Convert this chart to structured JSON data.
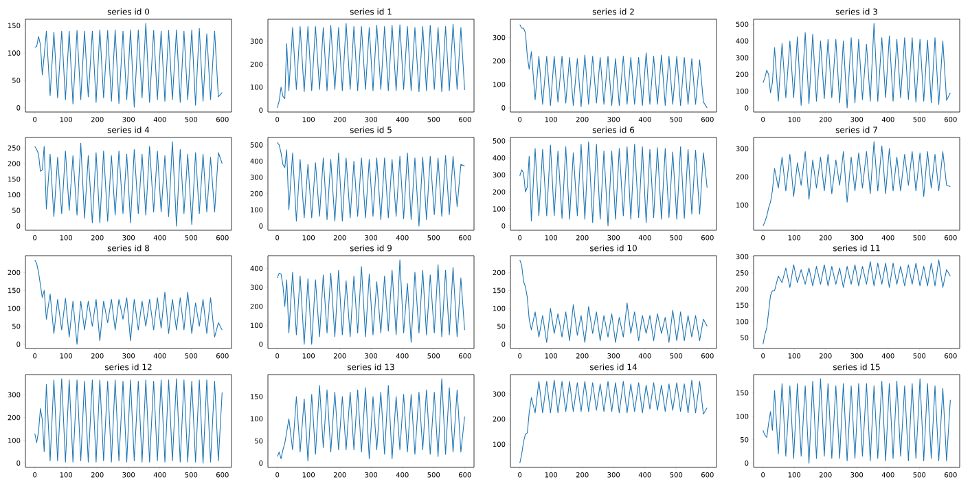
{
  "chart_data": [
    {
      "type": "line",
      "title": "series id 0",
      "color": "#1f77b4",
      "xlim": [
        -30,
        629
      ],
      "xticks": [
        0,
        100,
        200,
        300,
        400,
        500,
        600
      ],
      "ylim": [
        -7.7,
        161.6
      ],
      "yticks": [
        0,
        50,
        100,
        150
      ],
      "x": [
        0,
        6,
        12,
        18,
        24,
        30,
        37,
        49,
        61,
        73,
        86,
        98,
        110,
        122,
        135,
        147,
        159,
        171,
        184,
        196,
        208,
        220,
        233,
        245,
        257,
        269,
        282,
        294,
        306,
        318,
        331,
        343,
        355,
        367,
        380,
        392,
        404,
        416,
        428,
        440,
        453,
        465,
        477,
        489,
        502,
        514,
        526,
        538,
        550,
        562,
        575,
        587,
        599
      ],
      "values": [
        110,
        112,
        130,
        115,
        60,
        95,
        140,
        22,
        138,
        18,
        140,
        15,
        140,
        7,
        141,
        15,
        140,
        20,
        140,
        10,
        142,
        18,
        141,
        12,
        142,
        8,
        140,
        15,
        142,
        1,
        142,
        18,
        154,
        10,
        141,
        15,
        140,
        12,
        141,
        15,
        142,
        10,
        140,
        15,
        142,
        5,
        145,
        12,
        135,
        15,
        140,
        20,
        28
      ]
    },
    {
      "type": "line",
      "title": "series id 1",
      "color": "#1f77b4",
      "xlim": [
        -30,
        629
      ],
      "xticks": [
        0,
        100,
        200,
        300,
        400,
        500,
        600
      ],
      "ylim": [
        -8.4,
        396.4
      ],
      "yticks": [
        0,
        100,
        200,
        300
      ],
      "x": [
        0,
        6,
        12,
        18,
        24,
        30,
        37,
        49,
        61,
        73,
        86,
        98,
        110,
        122,
        135,
        147,
        159,
        171,
        184,
        196,
        208,
        220,
        233,
        245,
        257,
        269,
        282,
        294,
        306,
        318,
        331,
        343,
        355,
        367,
        380,
        392,
        404,
        416,
        428,
        440,
        453,
        465,
        477,
        489,
        502,
        514,
        526,
        538,
        550,
        562,
        575,
        587,
        599
      ],
      "values": [
        10,
        40,
        100,
        60,
        50,
        290,
        85,
        360,
        90,
        365,
        80,
        365,
        85,
        365,
        90,
        360,
        85,
        370,
        90,
        360,
        85,
        378,
        90,
        365,
        85,
        365,
        90,
        360,
        85,
        370,
        90,
        365,
        85,
        370,
        85,
        372,
        90,
        365,
        85,
        360,
        80,
        365,
        85,
        370,
        90,
        360,
        80,
        365,
        85,
        375,
        90,
        360,
        88
      ]
    },
    {
      "type": "line",
      "title": "series id 2",
      "color": "#1f77b4",
      "xlim": [
        -30,
        629
      ],
      "xticks": [
        0,
        100,
        200,
        300,
        400,
        500,
        600
      ],
      "ylim": [
        -18,
        378
      ],
      "yticks": [
        0,
        100,
        200,
        300
      ],
      "x": [
        0,
        6,
        12,
        18,
        24,
        30,
        37,
        49,
        61,
        73,
        86,
        98,
        110,
        122,
        135,
        147,
        159,
        171,
        184,
        196,
        208,
        220,
        233,
        245,
        257,
        269,
        282,
        294,
        306,
        318,
        331,
        343,
        355,
        367,
        380,
        392,
        404,
        416,
        428,
        440,
        453,
        465,
        477,
        489,
        502,
        514,
        526,
        538,
        550,
        562,
        575,
        587,
        599
      ],
      "values": [
        355,
        340,
        340,
        320,
        220,
        165,
        240,
        35,
        220,
        15,
        220,
        10,
        220,
        25,
        220,
        20,
        215,
        10,
        210,
        5,
        225,
        15,
        220,
        20,
        215,
        15,
        220,
        10,
        210,
        10,
        220,
        15,
        215,
        15,
        215,
        10,
        235,
        15,
        220,
        15,
        225,
        10,
        220,
        15,
        220,
        10,
        215,
        15,
        210,
        15,
        205,
        25,
        0
      ]
    },
    {
      "type": "line",
      "title": "series id 3",
      "color": "#1f77b4",
      "xlim": [
        -30,
        629
      ],
      "xticks": [
        0,
        100,
        200,
        300,
        400,
        500,
        600
      ],
      "ylim": [
        -25,
        530
      ],
      "yticks": [
        0,
        100,
        200,
        300,
        400,
        500
      ],
      "x": [
        0,
        6,
        12,
        18,
        24,
        30,
        37,
        49,
        61,
        73,
        86,
        98,
        110,
        122,
        135,
        147,
        159,
        171,
        184,
        196,
        208,
        220,
        233,
        245,
        257,
        269,
        282,
        294,
        306,
        318,
        331,
        343,
        355,
        367,
        380,
        392,
        404,
        416,
        428,
        440,
        453,
        465,
        477,
        489,
        502,
        514,
        526,
        538,
        550,
        562,
        575,
        587,
        599
      ],
      "values": [
        150,
        180,
        225,
        200,
        90,
        150,
        360,
        40,
        385,
        60,
        400,
        60,
        425,
        15,
        450,
        25,
        440,
        40,
        400,
        55,
        410,
        60,
        410,
        30,
        400,
        0,
        420,
        30,
        410,
        50,
        380,
        40,
        505,
        40,
        420,
        60,
        430,
        40,
        410,
        60,
        420,
        50,
        420,
        35,
        410,
        40,
        405,
        30,
        420,
        20,
        400,
        45,
        90
      ]
    },
    {
      "type": "line",
      "title": "series id 4",
      "color": "#1f77b4",
      "xlim": [
        -30,
        629
      ],
      "xticks": [
        0,
        100,
        200,
        300,
        400,
        500,
        600
      ],
      "ylim": [
        -13.5,
        283.5
      ],
      "yticks": [
        0,
        50,
        100,
        150,
        200,
        250
      ],
      "x": [
        0,
        6,
        12,
        18,
        24,
        30,
        37,
        49,
        61,
        73,
        86,
        98,
        110,
        122,
        135,
        147,
        159,
        171,
        184,
        196,
        208,
        220,
        233,
        245,
        257,
        269,
        282,
        294,
        306,
        318,
        331,
        343,
        355,
        367,
        380,
        392,
        404,
        416,
        428,
        440,
        453,
        465,
        477,
        489,
        502,
        514,
        526,
        538,
        550,
        562,
        575,
        587,
        599
      ],
      "values": [
        255,
        245,
        230,
        175,
        180,
        255,
        55,
        230,
        30,
        220,
        40,
        240,
        50,
        225,
        35,
        265,
        25,
        225,
        10,
        235,
        10,
        240,
        15,
        225,
        35,
        240,
        40,
        230,
        10,
        245,
        40,
        230,
        35,
        255,
        45,
        240,
        45,
        225,
        30,
        270,
        0,
        245,
        40,
        230,
        5,
        235,
        40,
        230,
        45,
        220,
        45,
        235,
        200
      ]
    },
    {
      "type": "line",
      "title": "series id 5",
      "color": "#1f77b4",
      "xlim": [
        -30,
        629
      ],
      "xticks": [
        0,
        100,
        200,
        300,
        400,
        500,
        600
      ],
      "ylim": [
        -26,
        546
      ],
      "yticks": [
        0,
        100,
        200,
        300,
        400,
        500
      ],
      "x": [
        0,
        6,
        12,
        18,
        24,
        30,
        37,
        49,
        61,
        73,
        86,
        98,
        110,
        122,
        135,
        147,
        159,
        171,
        184,
        196,
        208,
        220,
        233,
        245,
        257,
        269,
        282,
        294,
        306,
        318,
        331,
        343,
        355,
        367,
        380,
        392,
        404,
        416,
        428,
        440,
        453,
        465,
        477,
        489,
        502,
        514,
        526,
        538,
        550,
        562,
        575,
        587,
        599
      ],
      "values": [
        515,
        500,
        450,
        380,
        360,
        470,
        100,
        450,
        30,
        410,
        50,
        380,
        50,
        390,
        60,
        420,
        40,
        410,
        30,
        450,
        30,
        420,
        50,
        400,
        60,
        420,
        50,
        410,
        60,
        420,
        40,
        420,
        50,
        410,
        60,
        430,
        45,
        450,
        40,
        420,
        0,
        425,
        40,
        430,
        70,
        420,
        60,
        435,
        70,
        430,
        120,
        380,
        370
      ]
    },
    {
      "type": "line",
      "title": "series id 6",
      "color": "#1f77b4",
      "xlim": [
        -30,
        629
      ],
      "xticks": [
        0,
        100,
        200,
        300,
        400,
        500,
        600
      ],
      "ylim": [
        -25,
        520
      ],
      "yticks": [
        0,
        100,
        200,
        300,
        400,
        500
      ],
      "x": [
        0,
        6,
        12,
        18,
        24,
        30,
        37,
        49,
        61,
        73,
        86,
        98,
        110,
        122,
        135,
        147,
        159,
        171,
        184,
        196,
        208,
        220,
        233,
        245,
        257,
        269,
        282,
        294,
        306,
        318,
        331,
        343,
        355,
        367,
        380,
        392,
        404,
        416,
        428,
        440,
        453,
        465,
        477,
        489,
        502,
        514,
        526,
        538,
        550,
        562,
        575,
        587,
        599
      ],
      "values": [
        295,
        330,
        310,
        200,
        230,
        410,
        30,
        455,
        60,
        450,
        60,
        475,
        60,
        440,
        45,
        465,
        40,
        430,
        60,
        480,
        40,
        495,
        20,
        480,
        40,
        440,
        0,
        440,
        40,
        455,
        60,
        465,
        40,
        480,
        50,
        465,
        20,
        450,
        50,
        460,
        40,
        455,
        50,
        435,
        40,
        465,
        45,
        450,
        70,
        445,
        70,
        430,
        225
      ]
    },
    {
      "type": "line",
      "title": "series id 7",
      "color": "#1f77b4",
      "xlim": [
        -30,
        629
      ],
      "xticks": [
        0,
        100,
        200,
        300,
        400,
        500,
        600
      ],
      "ylim": [
        10,
        340
      ],
      "yticks": [
        100,
        200,
        300
      ],
      "x": [
        0,
        6,
        12,
        18,
        24,
        30,
        37,
        49,
        61,
        73,
        86,
        98,
        110,
        122,
        135,
        147,
        159,
        171,
        184,
        196,
        208,
        220,
        233,
        245,
        257,
        269,
        282,
        294,
        306,
        318,
        331,
        343,
        355,
        367,
        380,
        392,
        404,
        416,
        428,
        440,
        453,
        465,
        477,
        489,
        502,
        514,
        526,
        538,
        550,
        562,
        575,
        587,
        599
      ],
      "values": [
        25,
        40,
        60,
        90,
        110,
        150,
        230,
        160,
        270,
        150,
        280,
        130,
        250,
        170,
        290,
        120,
        260,
        160,
        270,
        150,
        280,
        140,
        260,
        170,
        290,
        110,
        270,
        150,
        285,
        160,
        290,
        140,
        325,
        150,
        310,
        140,
        300,
        150,
        270,
        150,
        280,
        170,
        290,
        150,
        285,
        130,
        290,
        160,
        280,
        150,
        290,
        170,
        165
      ]
    },
    {
      "type": "line",
      "title": "series id 8",
      "color": "#1f77b4",
      "xlim": [
        -30,
        629
      ],
      "xticks": [
        0,
        100,
        200,
        300,
        400,
        500,
        600
      ],
      "ylim": [
        -11.75,
        246.75
      ],
      "yticks": [
        0,
        50,
        100,
        150,
        200
      ],
      "x": [
        0,
        6,
        12,
        18,
        24,
        30,
        37,
        49,
        61,
        73,
        86,
        98,
        110,
        122,
        135,
        147,
        159,
        171,
        184,
        196,
        208,
        220,
        233,
        245,
        257,
        269,
        282,
        294,
        306,
        318,
        331,
        343,
        355,
        367,
        380,
        392,
        404,
        416,
        428,
        440,
        453,
        465,
        477,
        489,
        502,
        514,
        526,
        538,
        550,
        562,
        575,
        587,
        599
      ],
      "values": [
        235,
        225,
        200,
        165,
        130,
        150,
        70,
        140,
        30,
        125,
        40,
        128,
        20,
        120,
        0,
        120,
        40,
        120,
        50,
        125,
        10,
        120,
        60,
        125,
        40,
        125,
        70,
        130,
        10,
        125,
        40,
        120,
        50,
        125,
        40,
        130,
        45,
        145,
        30,
        125,
        40,
        130,
        40,
        145,
        30,
        115,
        50,
        125,
        30,
        130,
        20,
        60,
        40
      ]
    },
    {
      "type": "line",
      "title": "series id 9",
      "color": "#1f77b4",
      "xlim": [
        -30,
        629
      ],
      "xticks": [
        0,
        100,
        200,
        300,
        400,
        500,
        600
      ],
      "ylim": [
        -22,
        467
      ],
      "yticks": [
        0,
        100,
        200,
        300,
        400
      ],
      "x": [
        0,
        6,
        12,
        18,
        24,
        30,
        37,
        49,
        61,
        73,
        86,
        98,
        110,
        122,
        135,
        147,
        159,
        171,
        184,
        196,
        208,
        220,
        233,
        245,
        257,
        269,
        282,
        294,
        306,
        318,
        331,
        343,
        355,
        367,
        380,
        392,
        404,
        416,
        428,
        440,
        453,
        465,
        477,
        489,
        502,
        514,
        526,
        538,
        550,
        562,
        575,
        587,
        599
      ],
      "values": [
        350,
        375,
        370,
        310,
        200,
        340,
        60,
        380,
        50,
        360,
        0,
        345,
        0,
        340,
        40,
        365,
        60,
        375,
        40,
        390,
        50,
        335,
        40,
        360,
        60,
        410,
        40,
        370,
        50,
        330,
        60,
        360,
        70,
        390,
        50,
        445,
        60,
        320,
        10,
        380,
        60,
        390,
        50,
        365,
        60,
        420,
        40,
        390,
        50,
        405,
        40,
        350,
        75
      ]
    },
    {
      "type": "line",
      "title": "series id 10",
      "color": "#1f77b4",
      "xlim": [
        -30,
        629
      ],
      "xticks": [
        0,
        100,
        200,
        300,
        400,
        500,
        600
      ],
      "ylim": [
        -11.75,
        246.75
      ],
      "yticks": [
        0,
        50,
        100,
        150,
        200
      ],
      "x": [
        0,
        6,
        12,
        18,
        24,
        30,
        37,
        49,
        61,
        73,
        86,
        98,
        110,
        122,
        135,
        147,
        159,
        171,
        184,
        196,
        208,
        220,
        233,
        245,
        257,
        269,
        282,
        294,
        306,
        318,
        331,
        343,
        355,
        367,
        380,
        392,
        404,
        416,
        428,
        440,
        453,
        465,
        477,
        489,
        502,
        514,
        526,
        538,
        550,
        562,
        575,
        587,
        599
      ],
      "values": [
        235,
        220,
        175,
        160,
        130,
        70,
        40,
        90,
        20,
        80,
        5,
        100,
        30,
        85,
        20,
        90,
        10,
        110,
        25,
        80,
        5,
        105,
        30,
        90,
        10,
        80,
        20,
        85,
        5,
        75,
        20,
        115,
        30,
        90,
        10,
        80,
        30,
        80,
        10,
        85,
        30,
        75,
        5,
        95,
        10,
        90,
        10,
        80,
        20,
        80,
        10,
        70,
        50
      ]
    },
    {
      "type": "line",
      "title": "series id 11",
      "color": "#1f77b4",
      "xlim": [
        -30,
        629
      ],
      "xticks": [
        0,
        100,
        200,
        300,
        400,
        500,
        600
      ],
      "ylim": [
        17,
        303
      ],
      "yticks": [
        50,
        100,
        150,
        200,
        250,
        300
      ],
      "x": [
        0,
        6,
        12,
        18,
        24,
        30,
        37,
        49,
        61,
        73,
        86,
        98,
        110,
        122,
        135,
        147,
        159,
        171,
        184,
        196,
        208,
        220,
        233,
        245,
        257,
        269,
        282,
        294,
        306,
        318,
        331,
        343,
        355,
        367,
        380,
        392,
        404,
        416,
        428,
        440,
        453,
        465,
        477,
        489,
        502,
        514,
        526,
        538,
        550,
        562,
        575,
        587,
        599
      ],
      "values": [
        30,
        60,
        80,
        130,
        180,
        195,
        195,
        240,
        220,
        265,
        205,
        275,
        220,
        260,
        215,
        265,
        210,
        270,
        215,
        275,
        210,
        270,
        215,
        265,
        205,
        270,
        215,
        275,
        210,
        270,
        215,
        285,
        210,
        280,
        215,
        280,
        205,
        280,
        215,
        270,
        210,
        275,
        215,
        280,
        210,
        270,
        210,
        280,
        210,
        290,
        205,
        260,
        240
      ]
    },
    {
      "type": "line",
      "title": "series id 12",
      "color": "#1f77b4",
      "xlim": [
        -30,
        629
      ],
      "xticks": [
        0,
        100,
        200,
        300,
        400,
        500,
        600
      ],
      "ylim": [
        -18.5,
        388.5
      ],
      "yticks": [
        0,
        100,
        200,
        300
      ],
      "x": [
        0,
        6,
        12,
        18,
        24,
        30,
        37,
        49,
        61,
        73,
        86,
        98,
        110,
        122,
        135,
        147,
        159,
        171,
        184,
        196,
        208,
        220,
        233,
        245,
        257,
        269,
        282,
        294,
        306,
        318,
        331,
        343,
        355,
        367,
        380,
        392,
        404,
        416,
        428,
        440,
        453,
        465,
        477,
        489,
        502,
        514,
        526,
        538,
        550,
        562,
        575,
        587,
        599
      ],
      "values": [
        130,
        90,
        140,
        240,
        190,
        50,
        345,
        10,
        365,
        10,
        370,
        5,
        365,
        5,
        365,
        10,
        360,
        5,
        365,
        5,
        365,
        10,
        360,
        5,
        365,
        10,
        360,
        5,
        365,
        10,
        360,
        5,
        365,
        5,
        360,
        10,
        365,
        5,
        365,
        10,
        370,
        5,
        365,
        5,
        360,
        5,
        365,
        0,
        365,
        5,
        360,
        10,
        310
      ]
    },
    {
      "type": "line",
      "title": "series id 13",
      "color": "#1f77b4",
      "xlim": [
        -30,
        629
      ],
      "xticks": [
        0,
        100,
        200,
        300,
        400,
        500,
        600
      ],
      "ylim": [
        -9.5,
        199.5
      ],
      "yticks": [
        0,
        50,
        100,
        150
      ],
      "x": [
        0,
        6,
        12,
        18,
        24,
        30,
        37,
        49,
        61,
        73,
        86,
        98,
        110,
        122,
        135,
        147,
        159,
        171,
        184,
        196,
        208,
        220,
        233,
        245,
        257,
        269,
        282,
        294,
        306,
        318,
        331,
        343,
        355,
        367,
        380,
        392,
        404,
        416,
        428,
        440,
        453,
        465,
        477,
        489,
        502,
        514,
        526,
        538,
        550,
        562,
        575,
        587,
        599
      ],
      "values": [
        15,
        25,
        10,
        30,
        45,
        70,
        100,
        30,
        150,
        25,
        145,
        5,
        155,
        20,
        175,
        35,
        165,
        25,
        160,
        30,
        150,
        30,
        160,
        30,
        165,
        25,
        170,
        10,
        150,
        30,
        160,
        20,
        175,
        10,
        150,
        30,
        155,
        25,
        155,
        20,
        160,
        30,
        165,
        20,
        160,
        15,
        190,
        20,
        170,
        25,
        165,
        25,
        105
      ]
    },
    {
      "type": "line",
      "title": "series id 14",
      "color": "#1f77b4",
      "xlim": [
        -30,
        629
      ],
      "xticks": [
        0,
        100,
        200,
        300,
        400,
        500,
        600
      ],
      "ylim": [
        8,
        377
      ],
      "yticks": [
        100,
        200,
        300
      ],
      "x": [
        0,
        6,
        12,
        18,
        24,
        30,
        37,
        49,
        61,
        73,
        86,
        98,
        110,
        122,
        135,
        147,
        159,
        171,
        184,
        196,
        208,
        220,
        233,
        245,
        257,
        269,
        282,
        294,
        306,
        318,
        331,
        343,
        355,
        367,
        380,
        392,
        404,
        416,
        428,
        440,
        453,
        465,
        477,
        489,
        502,
        514,
        526,
        538,
        550,
        562,
        575,
        587,
        599
      ],
      "values": [
        25,
        60,
        110,
        140,
        145,
        225,
        285,
        225,
        350,
        225,
        350,
        225,
        355,
        225,
        350,
        230,
        350,
        230,
        345,
        230,
        350,
        230,
        345,
        235,
        340,
        230,
        350,
        230,
        345,
        225,
        350,
        225,
        340,
        230,
        345,
        225,
        335,
        240,
        345,
        235,
        335,
        230,
        340,
        235,
        345,
        230,
        340,
        225,
        355,
        225,
        350,
        220,
        245
      ]
    },
    {
      "type": "line",
      "title": "series id 15",
      "color": "#1f77b4",
      "xlim": [
        -30,
        629
      ],
      "xticks": [
        0,
        100,
        200,
        300,
        400,
        500,
        600
      ],
      "ylim": [
        -9,
        189
      ],
      "yticks": [
        0,
        50,
        100,
        150
      ],
      "x": [
        0,
        6,
        12,
        18,
        24,
        30,
        37,
        49,
        61,
        73,
        86,
        98,
        110,
        122,
        135,
        147,
        159,
        171,
        184,
        196,
        208,
        220,
        233,
        245,
        257,
        269,
        282,
        294,
        306,
        318,
        331,
        343,
        355,
        367,
        380,
        392,
        404,
        416,
        428,
        440,
        453,
        465,
        477,
        489,
        502,
        514,
        526,
        538,
        550,
        562,
        575,
        587,
        599
      ],
      "values": [
        70,
        60,
        55,
        85,
        110,
        70,
        155,
        20,
        170,
        15,
        165,
        10,
        170,
        15,
        165,
        0,
        175,
        10,
        180,
        15,
        170,
        10,
        165,
        10,
        170,
        5,
        165,
        10,
        170,
        15,
        170,
        5,
        165,
        10,
        175,
        5,
        170,
        10,
        175,
        15,
        165,
        5,
        170,
        10,
        180,
        5,
        170,
        10,
        165,
        5,
        160,
        5,
        135
      ]
    }
  ]
}
